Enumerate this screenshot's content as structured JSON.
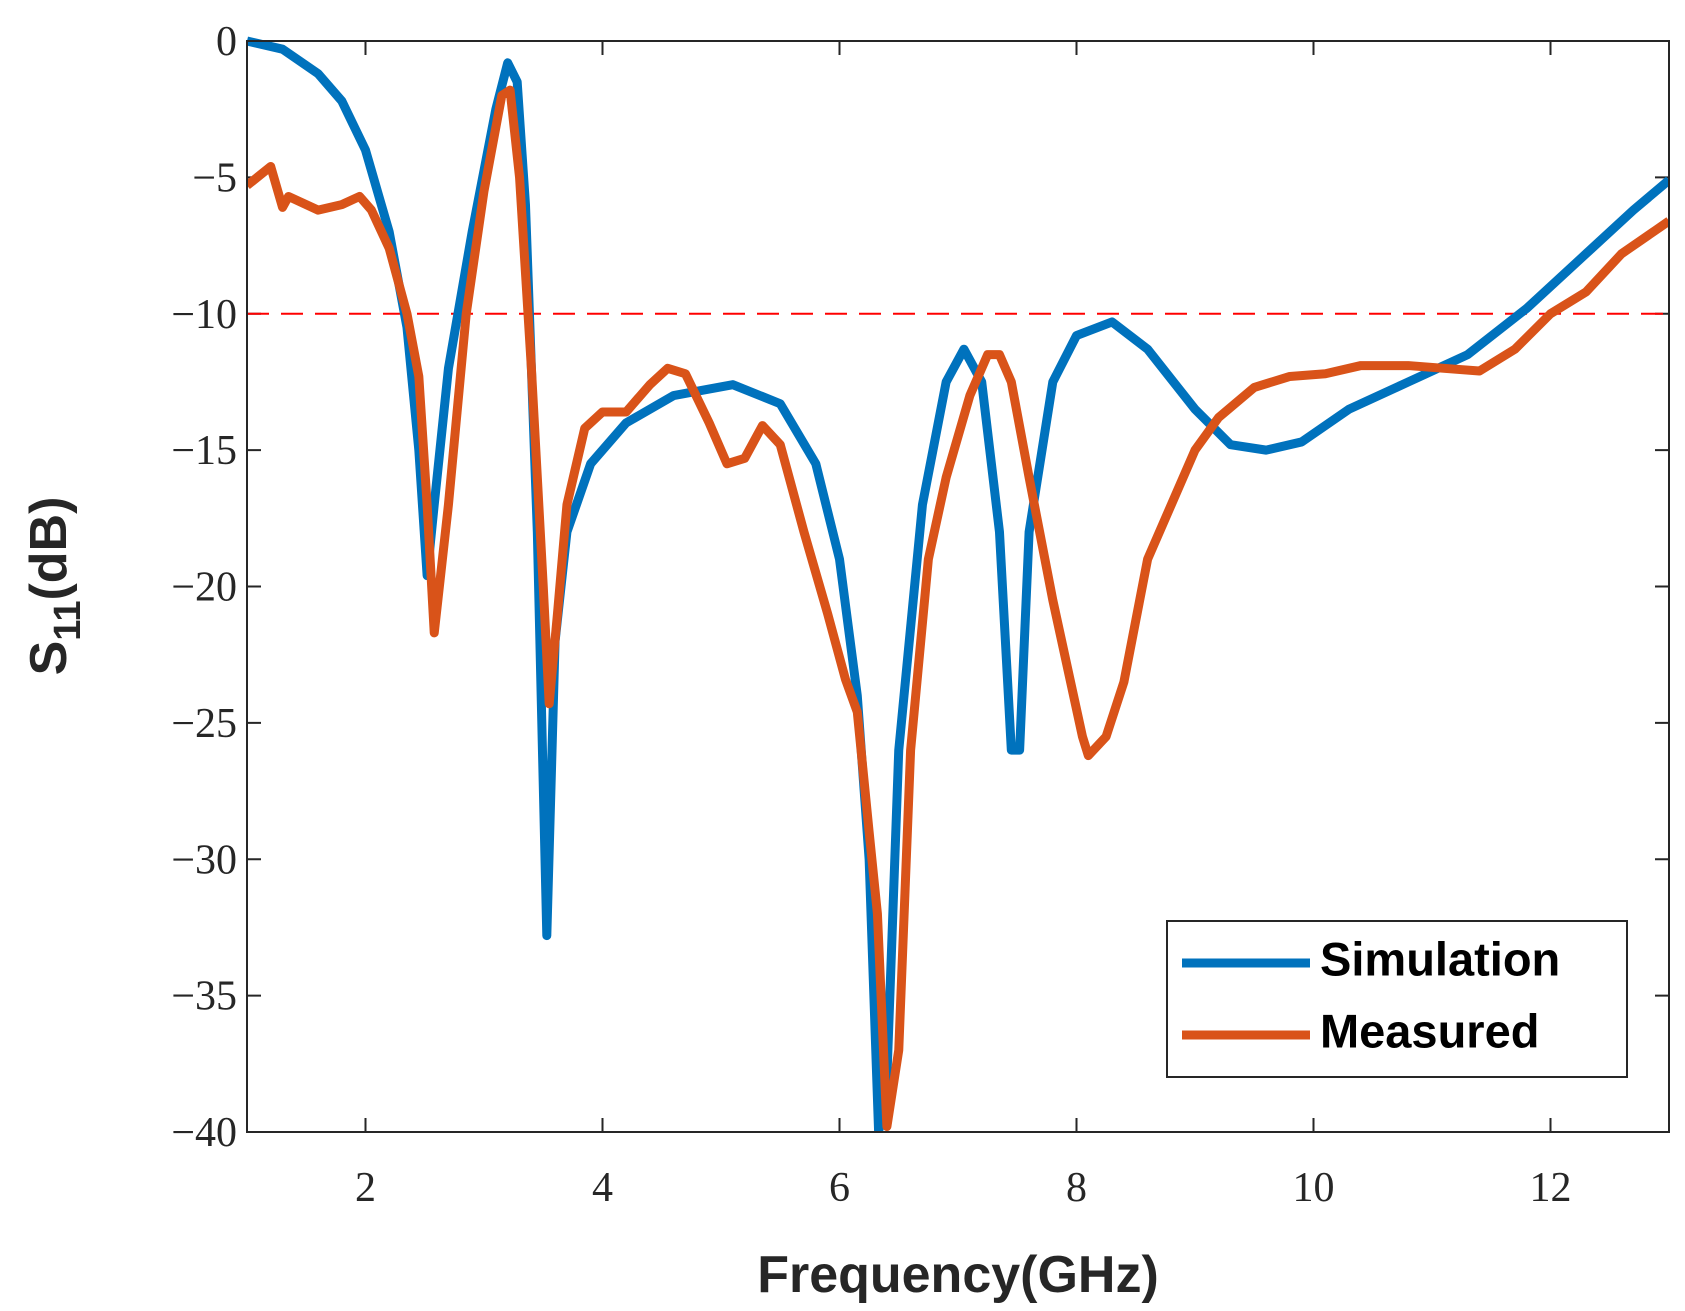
{
  "chart_data": {
    "type": "line",
    "xlabel": "Frequency(GHz)",
    "ylabel": {
      "text": "S",
      "subscript": "11",
      "suffix": "(dB)"
    },
    "xlim": [
      1,
      13
    ],
    "ylim": [
      -40,
      0
    ],
    "xticks": [
      2,
      4,
      6,
      8,
      10,
      12
    ],
    "yticks": [
      0,
      {
        "value": -5,
        "label": "−5"
      },
      {
        "value": -10,
        "label": "−10"
      },
      {
        "value": -15,
        "label": "−15"
      },
      {
        "value": -20,
        "label": "−20"
      },
      {
        "value": -25,
        "label": "−25"
      },
      {
        "value": -30,
        "label": "−30"
      },
      {
        "value": -35,
        "label": "−35"
      },
      {
        "value": -40,
        "label": "−40"
      }
    ],
    "grid": false,
    "legend": "lower right",
    "reference_line": {
      "y": -10,
      "color": "#ff0000",
      "style": "dashed"
    },
    "series": [
      {
        "name": "Simulation",
        "color": "#0072bd",
        "x": [
          1.0,
          1.3,
          1.6,
          1.8,
          2.0,
          2.2,
          2.35,
          2.45,
          2.52,
          2.58,
          2.7,
          2.9,
          3.1,
          3.2,
          3.28,
          3.35,
          3.45,
          3.53,
          3.6,
          3.7,
          3.9,
          4.2,
          4.6,
          5.1,
          5.5,
          5.8,
          6.0,
          6.15,
          6.25,
          6.33,
          6.4,
          6.5,
          6.7,
          6.9,
          7.05,
          7.2,
          7.35,
          7.45,
          7.52,
          7.6,
          7.8,
          8.0,
          8.3,
          8.6,
          9.0,
          9.3,
          9.6,
          9.9,
          10.3,
          10.8,
          11.3,
          11.8,
          12.3,
          12.7,
          13.0
        ],
        "values": [
          0,
          -0.3,
          -1.2,
          -2.2,
          -4.0,
          -7.0,
          -10.5,
          -15,
          -19.6,
          -17,
          -12,
          -7,
          -2.5,
          -0.8,
          -1.5,
          -6,
          -18,
          -32.8,
          -22,
          -18,
          -15.5,
          -14,
          -13,
          -12.6,
          -13.3,
          -15.5,
          -19,
          -24,
          -30,
          -40,
          -38,
          -26,
          -17,
          -12.5,
          -11.3,
          -12.5,
          -18,
          -26,
          -26,
          -18,
          -12.5,
          -10.8,
          -10.3,
          -11.3,
          -13.5,
          -14.8,
          -15,
          -14.7,
          -13.5,
          -12.5,
          -11.5,
          -9.8,
          -7.8,
          -6.2,
          -5.1
        ]
      },
      {
        "name": "Measured",
        "color": "#d95319",
        "x": [
          1.0,
          1.2,
          1.3,
          1.35,
          1.6,
          1.8,
          1.95,
          2.05,
          2.2,
          2.35,
          2.45,
          2.52,
          2.58,
          2.7,
          2.85,
          3.0,
          3.15,
          3.22,
          3.3,
          3.4,
          3.5,
          3.55,
          3.62,
          3.7,
          3.85,
          4.0,
          4.2,
          4.4,
          4.55,
          4.7,
          4.9,
          5.05,
          5.2,
          5.35,
          5.5,
          5.7,
          5.9,
          6.05,
          6.15,
          6.25,
          6.32,
          6.4,
          6.5,
          6.6,
          6.75,
          6.9,
          7.1,
          7.25,
          7.35,
          7.45,
          7.6,
          7.8,
          7.95,
          8.05,
          8.1,
          8.25,
          8.4,
          8.6,
          8.8,
          9.0,
          9.2,
          9.5,
          9.8,
          10.1,
          10.4,
          10.8,
          11.1,
          11.4,
          11.7,
          12.0,
          12.3,
          12.6,
          13.0
        ],
        "values": [
          -5.3,
          -4.6,
          -6.1,
          -5.7,
          -6.2,
          -6.0,
          -5.7,
          -6.2,
          -7.6,
          -10,
          -12.3,
          -17,
          -21.7,
          -17,
          -10,
          -5.5,
          -2.0,
          -1.8,
          -5,
          -12,
          -20,
          -24.3,
          -21,
          -17,
          -14.2,
          -13.6,
          -13.6,
          -12.6,
          -12.0,
          -12.2,
          -14,
          -15.5,
          -15.3,
          -14.1,
          -14.8,
          -18,
          -21,
          -23.4,
          -24.6,
          -29,
          -32,
          -39.8,
          -37,
          -26,
          -19,
          -16,
          -13,
          -11.5,
          -11.5,
          -12.5,
          -16,
          -20.5,
          -23.5,
          -25.5,
          -26.2,
          -25.5,
          -23.5,
          -19,
          -17,
          -15,
          -13.8,
          -12.7,
          -12.3,
          -12.2,
          -11.9,
          -11.9,
          -12,
          -12.1,
          -11.3,
          -10,
          -9.2,
          -7.8,
          -6.6
        ]
      }
    ]
  }
}
